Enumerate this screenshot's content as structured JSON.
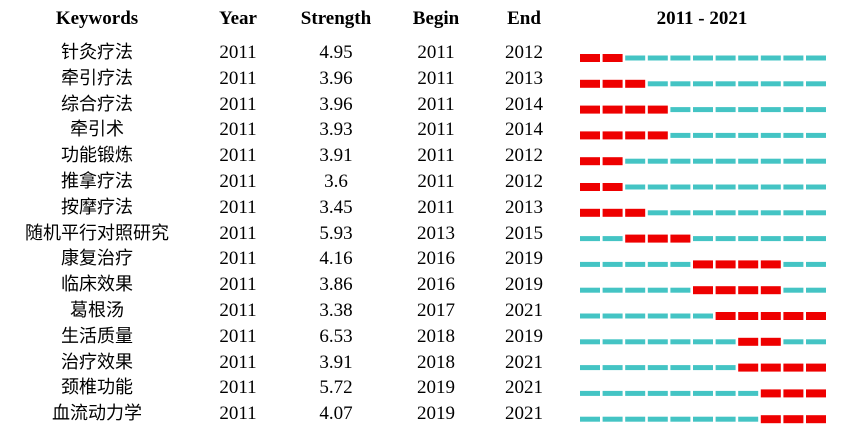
{
  "chart_data": {
    "type": "table",
    "headers": {
      "keywords": "Keywords",
      "year": "Year",
      "strength": "Strength",
      "begin": "Begin",
      "end": "End",
      "range": "2011 - 2021"
    },
    "range_start": 2011,
    "range_end": 2021,
    "colors": {
      "burst": "#ee0000",
      "base": "#44c4c4"
    },
    "rows": [
      {
        "keyword": "针灸疗法",
        "year": "2011",
        "strength": "4.95",
        "begin": "2011",
        "end": "2012"
      },
      {
        "keyword": "牵引疗法",
        "year": "2011",
        "strength": "3.96",
        "begin": "2011",
        "end": "2013"
      },
      {
        "keyword": "综合疗法",
        "year": "2011",
        "strength": "3.96",
        "begin": "2011",
        "end": "2014"
      },
      {
        "keyword": "牵引术",
        "year": "2011",
        "strength": "3.93",
        "begin": "2011",
        "end": "2014"
      },
      {
        "keyword": "功能锻炼",
        "year": "2011",
        "strength": "3.91",
        "begin": "2011",
        "end": "2012"
      },
      {
        "keyword": "推拿疗法",
        "year": "2011",
        "strength": "3.6",
        "begin": "2011",
        "end": "2012"
      },
      {
        "keyword": "按摩疗法",
        "year": "2011",
        "strength": "3.45",
        "begin": "2011",
        "end": "2013"
      },
      {
        "keyword": "随机平行对照研究",
        "year": "2011",
        "strength": "5.93",
        "begin": "2013",
        "end": "2015"
      },
      {
        "keyword": "康复治疗",
        "year": "2011",
        "strength": "4.16",
        "begin": "2016",
        "end": "2019"
      },
      {
        "keyword": "临床效果",
        "year": "2011",
        "strength": "3.86",
        "begin": "2016",
        "end": "2019"
      },
      {
        "keyword": "葛根汤",
        "year": "2011",
        "strength": "3.38",
        "begin": "2017",
        "end": "2021"
      },
      {
        "keyword": "生活质量",
        "year": "2011",
        "strength": "6.53",
        "begin": "2018",
        "end": "2019"
      },
      {
        "keyword": "治疗效果",
        "year": "2011",
        "strength": "3.91",
        "begin": "2018",
        "end": "2021"
      },
      {
        "keyword": "颈椎功能",
        "year": "2011",
        "strength": "5.72",
        "begin": "2019",
        "end": "2021"
      },
      {
        "keyword": "血流动力学",
        "year": "2011",
        "strength": "4.07",
        "begin": "2019",
        "end": "2021"
      }
    ]
  }
}
